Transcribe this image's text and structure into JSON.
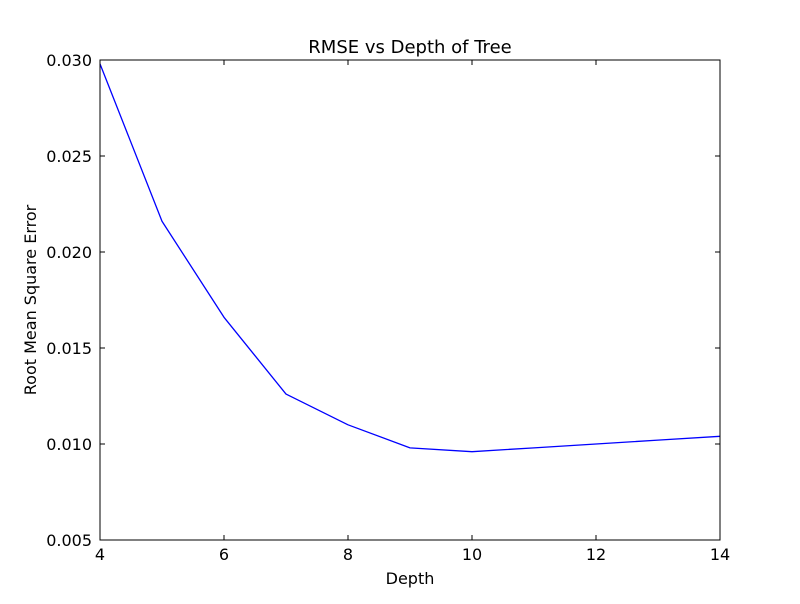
{
  "chart_data": {
    "type": "line",
    "title": "RMSE vs Depth of Tree",
    "xlabel": "Depth",
    "ylabel": "Root Mean Square Error",
    "xlim": [
      4,
      14
    ],
    "ylim": [
      0.005,
      0.03
    ],
    "x_ticks": [
      4,
      6,
      8,
      10,
      12,
      14
    ],
    "x_tick_labels": [
      "4",
      "6",
      "8",
      "10",
      "12",
      "14"
    ],
    "y_ticks": [
      0.005,
      0.01,
      0.015,
      0.02,
      0.025,
      0.03
    ],
    "y_tick_labels": [
      "0.005",
      "0.010",
      "0.015",
      "0.020",
      "0.025",
      "0.030"
    ],
    "grid": false,
    "series": [
      {
        "name": "RMSE",
        "color": "#0000ff",
        "x": [
          4,
          5,
          6,
          7,
          8,
          9,
          10,
          11,
          12,
          13,
          14
        ],
        "y": [
          0.0298,
          0.0216,
          0.0166,
          0.0126,
          0.011,
          0.0098,
          0.0096,
          0.0098,
          0.01,
          0.0102,
          0.0104
        ]
      }
    ]
  }
}
